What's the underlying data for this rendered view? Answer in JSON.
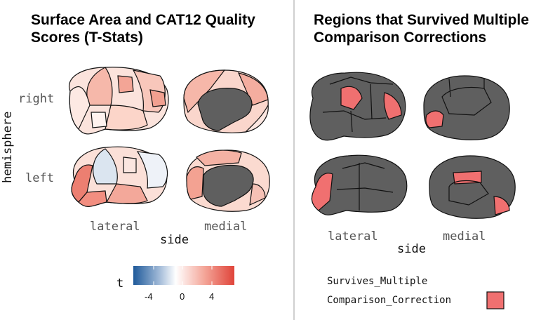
{
  "left_panel": {
    "title_line1": "Surface Area and CAT12 Quality",
    "title_line2": "Scores (T-Stats)",
    "row_labels": [
      "right",
      "left"
    ],
    "col_labels": [
      "lateral",
      "medial"
    ],
    "y_title": "hemisphere",
    "x_title": "side",
    "legend": {
      "title": "t",
      "ticks": [
        "-4",
        "0",
        "4"
      ],
      "colors": {
        "low": "#1f5a9a",
        "mid": "#ffffff",
        "high": "#e0443a"
      }
    }
  },
  "right_panel": {
    "title_line1": "Regions that Survived Multiple",
    "title_line2": "Comparison Corrections",
    "col_labels": [
      "lateral",
      "medial"
    ],
    "x_title": "side",
    "legend": {
      "title_line1": "Survives_Multiple",
      "title_line2": "Comparison_Correction",
      "swatch_color": "#f07070"
    }
  },
  "colors": {
    "gray": "#5f5f5f",
    "survive": "#f07070",
    "outline": "#111111"
  }
}
